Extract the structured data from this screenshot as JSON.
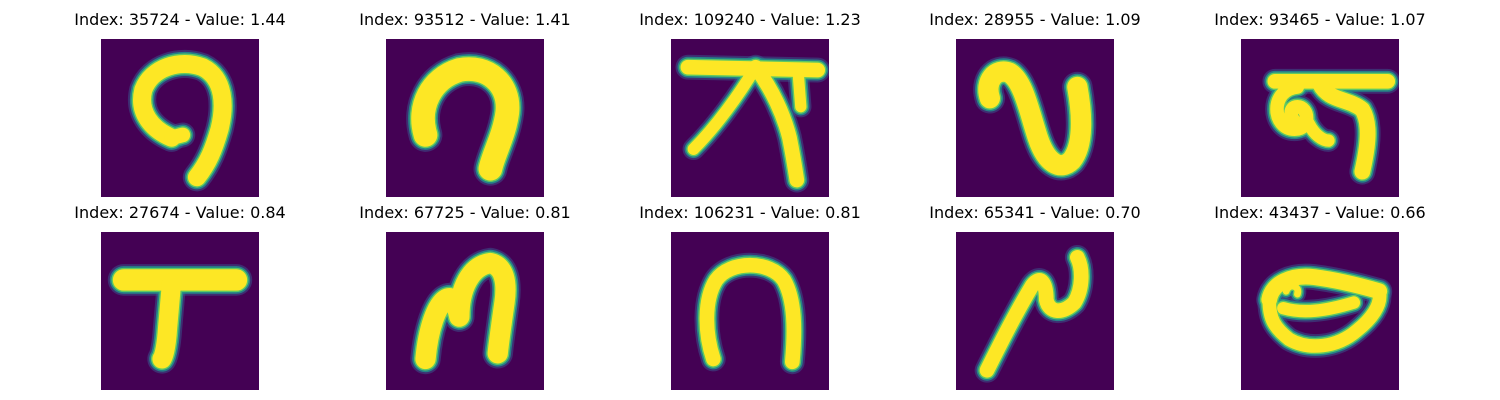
{
  "background_color": "#440154",
  "stroke_colors": {
    "core": "#fde725",
    "edge_light": "#5ec962",
    "edge_mid": "#21918c",
    "edge_dark": "#3b528b"
  },
  "panels": [
    {
      "title": "Index: 35724 - Value: 1.44"
    },
    {
      "title": "Index: 93512 - Value: 1.41"
    },
    {
      "title": "Index: 109240 - Value: 1.23"
    },
    {
      "title": "Index: 28955 - Value: 1.09"
    },
    {
      "title": "Index: 93465 - Value: 1.07"
    },
    {
      "title": "Index: 27674 - Value: 0.84"
    },
    {
      "title": "Index: 67725 - Value: 0.81"
    },
    {
      "title": "Index: 106231 - Value: 0.81"
    },
    {
      "title": "Index: 65341 - Value: 0.70"
    },
    {
      "title": "Index: 43437 - Value: 0.66"
    }
  ]
}
